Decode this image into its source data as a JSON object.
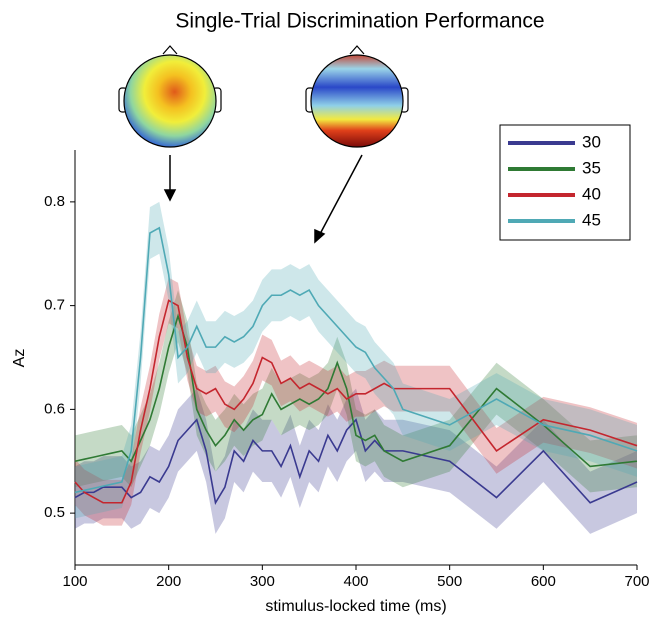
{
  "chart_data": {
    "type": "line",
    "title": "Single-Trial Discrimination Performance",
    "x_label": "stimulus-locked time (ms)",
    "y_label": "Az",
    "x": [
      100,
      110,
      120,
      130,
      140,
      150,
      160,
      170,
      180,
      190,
      200,
      210,
      220,
      230,
      240,
      250,
      260,
      270,
      280,
      290,
      300,
      310,
      320,
      330,
      340,
      350,
      360,
      370,
      380,
      390,
      400,
      410,
      420,
      430,
      440,
      450,
      500,
      550,
      600,
      650,
      700
    ],
    "series": [
      {
        "name": "30",
        "color": "#3a3a90",
        "error": 0.03,
        "values": [
          0.515,
          0.52,
          0.52,
          0.525,
          0.525,
          0.525,
          0.515,
          0.52,
          0.535,
          0.53,
          0.545,
          0.57,
          0.58,
          0.59,
          0.56,
          0.51,
          0.525,
          0.56,
          0.55,
          0.57,
          0.56,
          0.56,
          0.545,
          0.565,
          0.535,
          0.56,
          0.55,
          0.575,
          0.56,
          0.58,
          0.59,
          0.56,
          0.57,
          0.56,
          0.56,
          0.56,
          0.55,
          0.515,
          0.56,
          0.51,
          0.53
        ]
      },
      {
        "name": "35",
        "color": "#2f7a34",
        "error": 0.025,
        "values": [
          0.55,
          0.552,
          0.554,
          0.556,
          0.558,
          0.56,
          0.55,
          0.57,
          0.59,
          0.62,
          0.66,
          0.69,
          0.66,
          0.6,
          0.58,
          0.565,
          0.575,
          0.59,
          0.58,
          0.59,
          0.595,
          0.615,
          0.6,
          0.605,
          0.61,
          0.605,
          0.61,
          0.62,
          0.645,
          0.62,
          0.575,
          0.57,
          0.575,
          0.56,
          0.555,
          0.55,
          0.565,
          0.62,
          0.585,
          0.545,
          0.55
        ]
      },
      {
        "name": "40",
        "color": "#c4262e",
        "error": 0.022,
        "values": [
          0.53,
          0.52,
          0.515,
          0.51,
          0.51,
          0.51,
          0.53,
          0.58,
          0.62,
          0.67,
          0.705,
          0.7,
          0.65,
          0.62,
          0.615,
          0.62,
          0.605,
          0.6,
          0.61,
          0.625,
          0.65,
          0.645,
          0.625,
          0.63,
          0.62,
          0.625,
          0.62,
          0.615,
          0.62,
          0.61,
          0.615,
          0.615,
          0.62,
          0.625,
          0.62,
          0.62,
          0.62,
          0.56,
          0.59,
          0.58,
          0.565
        ]
      },
      {
        "name": "45",
        "color": "#4fa9b5",
        "error": 0.025,
        "values": [
          0.52,
          0.522,
          0.524,
          0.526,
          0.528,
          0.53,
          0.56,
          0.65,
          0.77,
          0.775,
          0.73,
          0.65,
          0.66,
          0.68,
          0.66,
          0.66,
          0.67,
          0.665,
          0.67,
          0.68,
          0.7,
          0.71,
          0.71,
          0.715,
          0.71,
          0.715,
          0.7,
          0.69,
          0.68,
          0.67,
          0.66,
          0.655,
          0.64,
          0.63,
          0.62,
          0.6,
          0.585,
          0.61,
          0.585,
          0.575,
          0.56
        ]
      }
    ],
    "xlim": [
      100,
      700
    ],
    "xticks": [
      100,
      200,
      300,
      400,
      500,
      600,
      700
    ],
    "ylim": [
      0.45,
      0.85
    ],
    "yticks": [
      0.5,
      0.6,
      0.7,
      0.8
    ],
    "legend": "upper right",
    "grid": false
  }
}
